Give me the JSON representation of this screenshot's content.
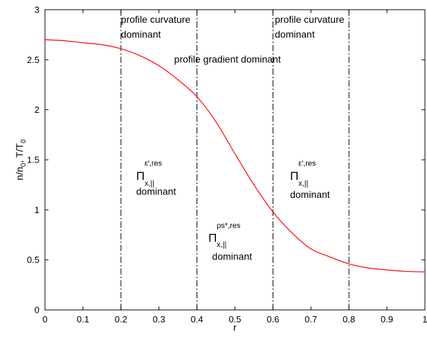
{
  "chart_data": {
    "type": "line",
    "title": "",
    "xlabel": "r",
    "ylabel": "n/n0, T/T0",
    "xlim": [
      0,
      1
    ],
    "ylim": [
      0,
      3
    ],
    "xticks": [
      0,
      0.1,
      0.2,
      0.3,
      0.4,
      0.5,
      0.6,
      0.7,
      0.8,
      0.9,
      1
    ],
    "yticks": [
      0,
      0.5,
      1,
      1.5,
      2,
      2.5,
      3
    ],
    "xtick_labels": [
      "0",
      "0.1",
      "0.2",
      "0.3",
      "0.4",
      "0.5",
      "0.6",
      "0.7",
      "0.8",
      "0.9",
      "1"
    ],
    "ytick_labels": [
      "0",
      "0.5",
      "1",
      "1.5",
      "2",
      "2.5",
      "3"
    ],
    "grid": false,
    "series": [
      {
        "color": "#ff0000",
        "x": [
          0,
          0.05,
          0.1,
          0.15,
          0.2,
          0.25,
          0.3,
          0.35,
          0.4,
          0.45,
          0.5,
          0.55,
          0.6,
          0.65,
          0.7,
          0.75,
          0.8,
          0.85,
          0.9,
          0.95,
          1
        ],
        "y": [
          2.7,
          2.69,
          2.67,
          2.65,
          2.61,
          2.54,
          2.44,
          2.3,
          2.13,
          1.88,
          1.56,
          1.25,
          0.98,
          0.77,
          0.61,
          0.53,
          0.46,
          0.42,
          0.4,
          0.385,
          0.38
        ]
      }
    ],
    "vlines": {
      "x": [
        0.2,
        0.4,
        0.6,
        0.8
      ],
      "style": "dash-dot",
      "color": "#000000"
    },
    "annotations": [
      {
        "text": "profile curvature",
        "x": 0.2,
        "y": 2.87
      },
      {
        "text": "dominant",
        "x": 0.2,
        "y": 2.72
      },
      {
        "text": "profile gradient dominant",
        "x": 0.34,
        "y": 2.47
      },
      {
        "text": "profile curvature",
        "x": 0.605,
        "y": 2.87
      },
      {
        "text": "dominant",
        "x": 0.605,
        "y": 2.72
      },
      {
        "text": "Π",
        "x": 0.24,
        "y": 1.3
      },
      {
        "text": "ε′,res",
        "x": 0.262,
        "y": 1.44
      },
      {
        "text": "x,||",
        "x": 0.262,
        "y": 1.24
      },
      {
        "text": "dominant",
        "x": 0.24,
        "y": 1.15
      },
      {
        "text": "Π",
        "x": 0.43,
        "y": 0.68
      },
      {
        "text": "ρs*,res",
        "x": 0.452,
        "y": 0.82
      },
      {
        "text": "x,||",
        "x": 0.452,
        "y": 0.63
      },
      {
        "text": "dominant",
        "x": 0.44,
        "y": 0.5
      },
      {
        "text": "Π",
        "x": 0.645,
        "y": 1.3
      },
      {
        "text": "ε′,res",
        "x": 0.667,
        "y": 1.44
      },
      {
        "text": "x,||",
        "x": 0.667,
        "y": 1.24
      },
      {
        "text": "dominant",
        "x": 0.645,
        "y": 1.12
      }
    ]
  }
}
